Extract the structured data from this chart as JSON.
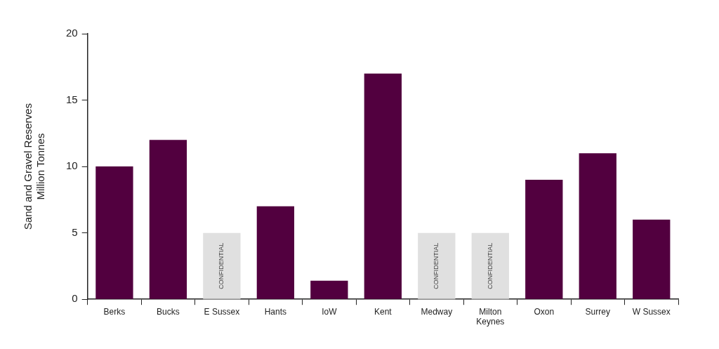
{
  "chart_data": {
    "type": "bar",
    "ylabel": "Sand and Gravel Reserves\nMillion Tonnes",
    "categories": [
      "Berks",
      "Bucks",
      "E Sussex",
      "Hants",
      "IoW",
      "Kent",
      "Medway",
      "Milton Keynes",
      "Oxon",
      "Surrey",
      "W Sussex"
    ],
    "values": [
      10,
      12,
      5,
      7,
      1.4,
      17,
      5,
      5,
      9,
      11,
      6
    ],
    "colors": [
      "#52003f",
      "#52003f",
      "#e0e0e0",
      "#52003f",
      "#52003f",
      "#52003f",
      "#e0e0e0",
      "#e0e0e0",
      "#52003f",
      "#52003f",
      "#52003f"
    ],
    "value_labels": [
      null,
      null,
      "CONFIDENTIAL",
      null,
      null,
      null,
      "CONFIDENTIAL",
      "CONFIDENTIAL",
      null,
      null,
      null
    ],
    "ylim": [
      0,
      20
    ],
    "yticks": [
      0,
      5,
      10,
      15,
      20
    ],
    "grid": false,
    "legend": false
  }
}
